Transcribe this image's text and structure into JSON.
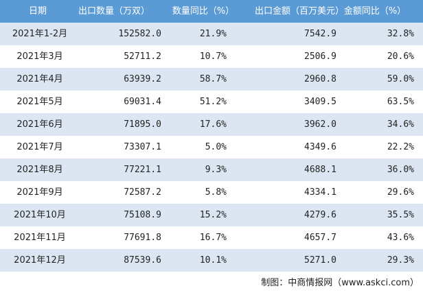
{
  "table": {
    "header": [
      "日期",
      "出口数量（万双）",
      "数量同比（%）",
      "出口金额（百万美元）",
      "金额同比（%）"
    ],
    "rows": [
      [
        "2021年1-2月",
        "152582.0",
        "21.9%",
        "7542.9",
        "32.8%"
      ],
      [
        "2021年3月",
        "52711.2",
        "10.7%",
        "2506.9",
        "20.6%"
      ],
      [
        "2021年4月",
        "63939.2",
        "58.7%",
        "2960.8",
        "59.0%"
      ],
      [
        "2021年5月",
        "69031.4",
        "51.2%",
        "3409.5",
        "63.5%"
      ],
      [
        "2021年6月",
        "71895.0",
        "17.6%",
        "3962.0",
        "34.6%"
      ],
      [
        "2021年7月",
        "73307.1",
        "5.0%",
        "4349.6",
        "22.2%"
      ],
      [
        "2021年8月",
        "77221.1",
        "9.3%",
        "4688.1",
        "36.0%"
      ],
      [
        "2021年9月",
        "72587.2",
        "5.8%",
        "4334.1",
        "29.6%"
      ],
      [
        "2021年10月",
        "75108.9",
        "15.2%",
        "4279.6",
        "35.5%"
      ],
      [
        "2021年11月",
        "77691.8",
        "16.7%",
        "4657.7",
        "43.6%"
      ],
      [
        "2021年12月",
        "87539.6",
        "10.1%",
        "5271.0",
        "29.3%"
      ]
    ]
  },
  "footer": "制图：中商情报网（www.askci.com）"
}
